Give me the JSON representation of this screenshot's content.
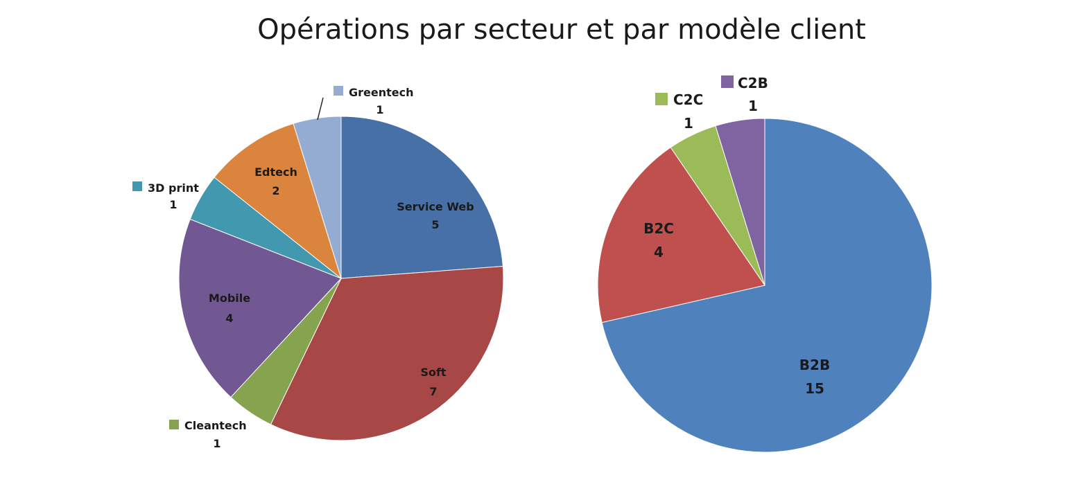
{
  "title": "Opérations par secteur et par modèle client",
  "chart_data": [
    {
      "type": "pie",
      "start_angle_deg": 0,
      "labels": [
        "Service Web",
        "Soft",
        "Cleantech",
        "Mobile",
        "3D print",
        "Edtech",
        "Greentech"
      ],
      "values": [
        5,
        7,
        1,
        4,
        1,
        2,
        1
      ],
      "colors": [
        "#4670A6",
        "#A84846",
        "#86A44F",
        "#725892",
        "#4298AE",
        "#DB843D",
        "#95ACD2"
      ],
      "label_placement": [
        "inside",
        "inside",
        "outside",
        "inside",
        "outside",
        "inside",
        "outside"
      ]
    },
    {
      "type": "pie",
      "start_angle_deg": 0,
      "labels": [
        "B2B",
        "B2C",
        "C2C",
        "C2B"
      ],
      "values": [
        15,
        4,
        1,
        1
      ],
      "colors": [
        "#4F81BD",
        "#C0504D",
        "#9BBB59",
        "#8064A2"
      ],
      "label_placement": [
        "inside",
        "inside",
        "outside",
        "outside"
      ]
    }
  ]
}
